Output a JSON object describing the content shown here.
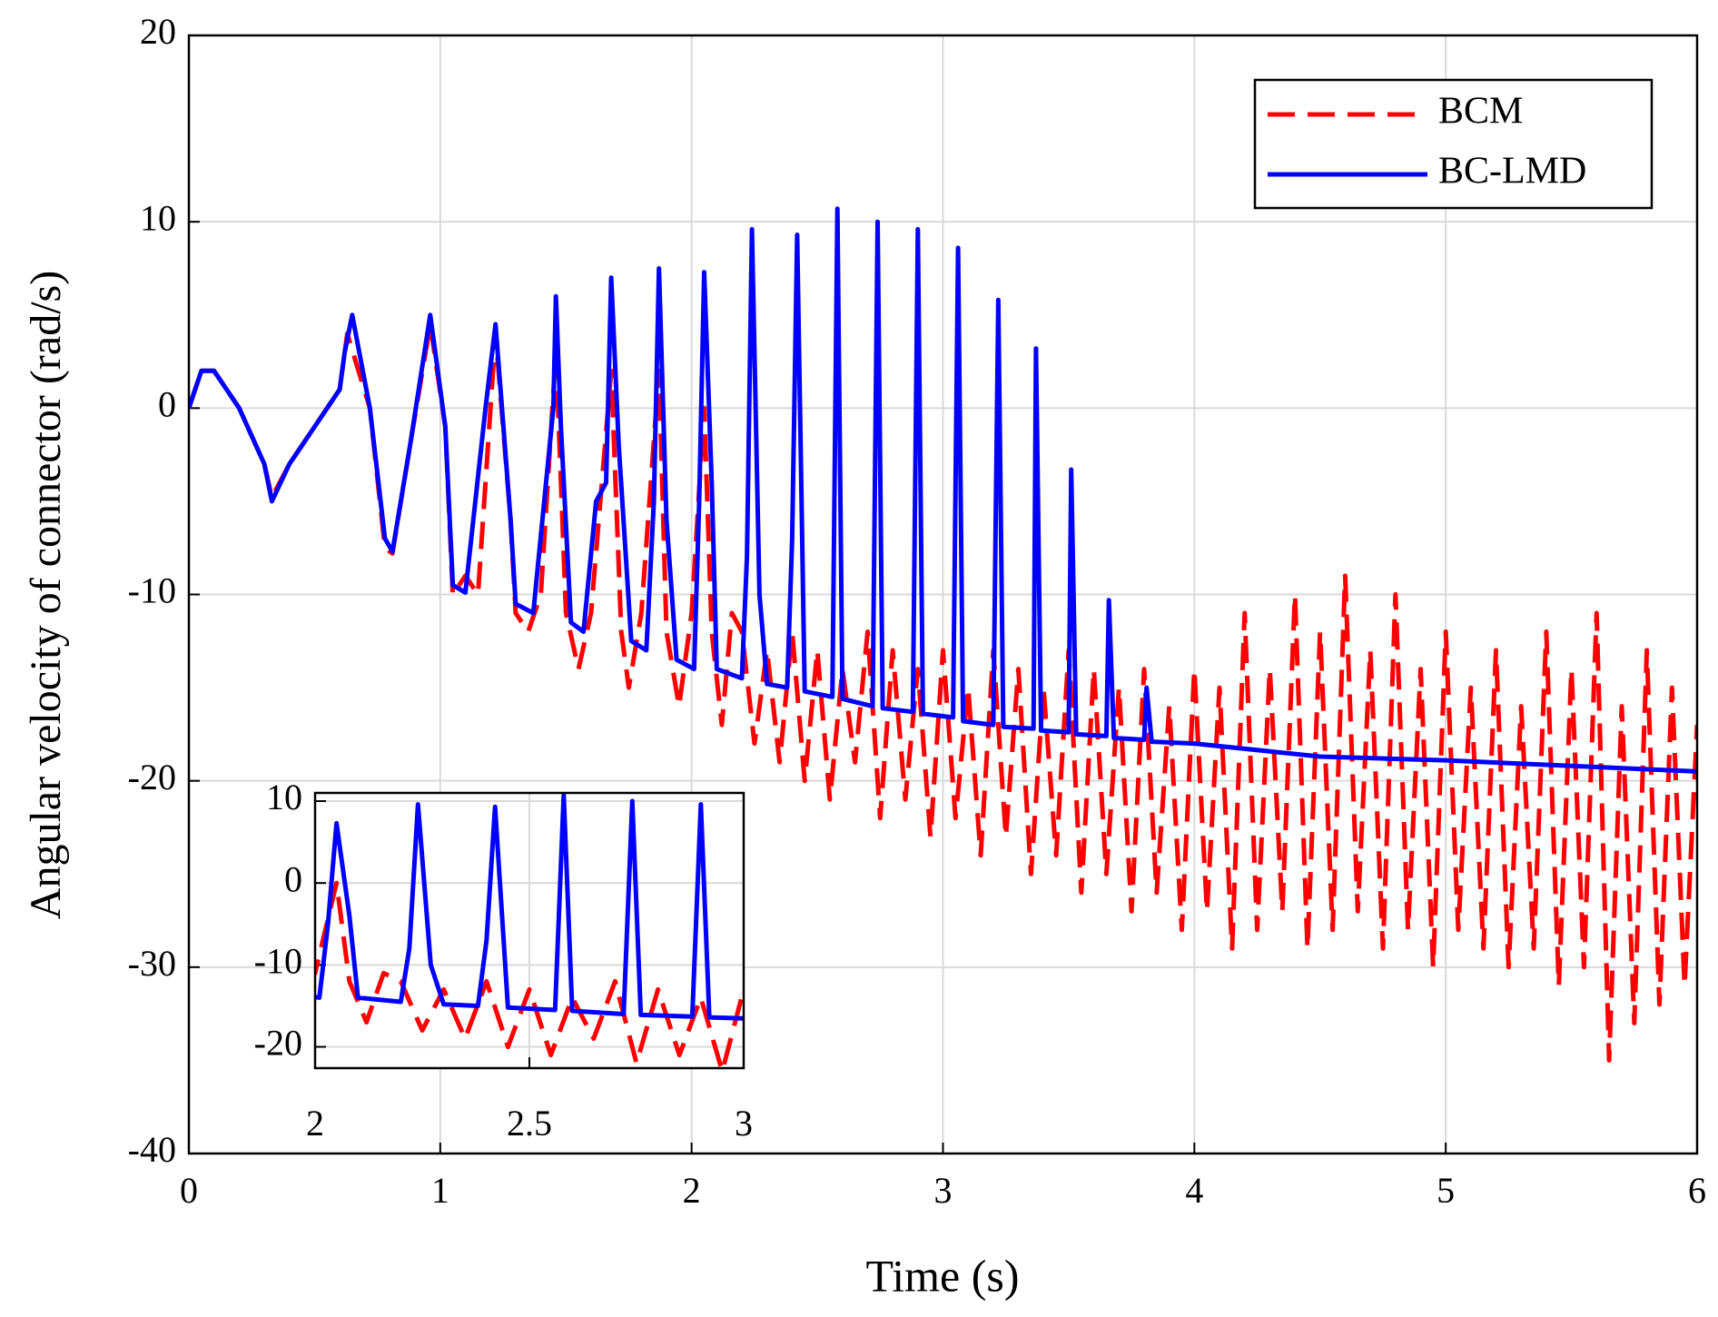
{
  "chart_data": [
    {
      "type": "line",
      "xlabel": "Time (s)",
      "ylabel": "Angular velocity of connector (rad/s)",
      "xlim": [
        0,
        6
      ],
      "xticks": [
        0,
        1,
        2,
        3,
        4,
        5,
        6
      ],
      "ylim": [
        -40,
        20
      ],
      "yticks": [
        -40,
        -30,
        -20,
        -10,
        0,
        10,
        20
      ],
      "grid": true,
      "legend": "upper right",
      "series": [
        {
          "name": "BCM",
          "color": "#ff0000",
          "style": "dashed",
          "x": [
            0,
            0.05,
            0.1,
            0.2,
            0.3,
            0.33,
            0.4,
            0.5,
            0.6,
            0.63,
            0.72,
            0.78,
            0.81,
            0.88,
            0.96,
            1.02,
            1.05,
            1.1,
            1.15,
            1.22,
            1.28,
            1.3,
            1.35,
            1.4,
            1.46,
            1.5,
            1.55,
            1.6,
            1.68,
            1.72,
            1.75,
            1.8,
            1.87,
            1.9,
            1.95,
            2.0,
            2.05,
            2.08,
            2.12,
            2.16,
            2.2,
            2.25,
            2.3,
            2.35,
            2.4,
            2.45,
            2.5,
            2.55,
            2.6,
            2.65,
            2.7,
            2.75,
            2.8,
            2.85,
            2.9,
            2.95,
            3.0,
            3.05,
            3.1,
            3.15,
            3.2,
            3.25,
            3.3,
            3.35,
            3.4,
            3.45,
            3.5,
            3.55,
            3.6,
            3.65,
            3.7,
            3.75,
            3.8,
            3.85,
            3.9,
            3.95,
            4.0,
            4.05,
            4.1,
            4.15,
            4.2,
            4.25,
            4.3,
            4.35,
            4.4,
            4.45,
            4.5,
            4.55,
            4.6,
            4.65,
            4.7,
            4.75,
            4.8,
            4.85,
            4.9,
            4.95,
            5.0,
            5.05,
            5.1,
            5.15,
            5.2,
            5.25,
            5.3,
            5.35,
            5.4,
            5.45,
            5.5,
            5.55,
            5.6,
            5.65,
            5.7,
            5.75,
            5.8,
            5.85,
            5.9,
            5.95,
            6.0
          ],
          "values": [
            0,
            2,
            2,
            0,
            -3,
            -4.8,
            -3,
            -1,
            1,
            4,
            0,
            -7.5,
            -7.8,
            -2,
            4.5,
            -1,
            -10,
            -9,
            -10,
            4,
            -6,
            -11,
            -12,
            -10,
            3,
            -11,
            -14,
            -11,
            2,
            -12,
            -15,
            -11,
            2,
            -12,
            -16,
            -11,
            0,
            -12,
            -17,
            -11,
            -12,
            -18,
            -13,
            -19,
            -12,
            -20,
            -13,
            -21,
            -14,
            -19,
            -12,
            -22,
            -13,
            -21,
            -14,
            -23,
            -13,
            -22,
            -15,
            -24,
            -13,
            -23,
            -14,
            -25,
            -15,
            -24,
            -13,
            -26,
            -14,
            -25,
            -15,
            -27,
            -14,
            -26,
            -16,
            -28,
            -14,
            -27,
            -15,
            -29,
            -11,
            -28,
            -14,
            -27,
            -10,
            -29,
            -12,
            -28,
            -9,
            -27,
            -13,
            -29,
            -10,
            -28,
            -14,
            -30,
            -12,
            -28,
            -15,
            -29,
            -13,
            -30,
            -16,
            -29,
            -12,
            -31,
            -14,
            -30,
            -11,
            -35,
            -16,
            -33,
            -13,
            -32,
            -15,
            -31,
            -17
          ]
        },
        {
          "name": "BC-LMD",
          "color": "#0000ff",
          "style": "solid",
          "x": [
            0,
            0.05,
            0.1,
            0.2,
            0.3,
            0.33,
            0.4,
            0.5,
            0.6,
            0.62,
            0.65,
            0.72,
            0.78,
            0.81,
            0.88,
            0.96,
            1.02,
            1.05,
            1.1,
            1.18,
            1.22,
            1.28,
            1.3,
            1.37,
            1.45,
            1.46,
            1.48,
            1.52,
            1.57,
            1.62,
            1.66,
            1.68,
            1.71,
            1.76,
            1.82,
            1.85,
            1.87,
            1.9,
            1.94,
            2.01,
            2.03,
            2.05,
            2.08,
            2.1,
            2.2,
            2.22,
            2.24,
            2.27,
            2.3,
            2.38,
            2.4,
            2.42,
            2.45,
            2.56,
            2.58,
            2.6,
            2.72,
            2.74,
            2.76,
            2.88,
            2.9,
            2.92,
            3.04,
            3.06,
            3.08,
            3.2,
            3.22,
            3.24,
            3.36,
            3.37,
            3.39,
            3.5,
            3.51,
            3.53,
            3.65,
            3.66,
            3.68,
            3.8,
            3.81,
            3.83,
            4,
            4.5,
            5,
            5.5,
            6
          ],
          "values": [
            0,
            2,
            2,
            0,
            -3,
            -5,
            -3,
            -1,
            1,
            3,
            5,
            0,
            -7,
            -7.7,
            -2,
            5,
            -1,
            -9.5,
            -9.9,
            0,
            4.5,
            -6,
            -10.5,
            -11,
            0,
            6,
            -1,
            -11.5,
            -12,
            -5,
            -4,
            7,
            -2,
            -12.5,
            -13,
            -5,
            7.5,
            -6,
            -13.5,
            -14,
            -5,
            7.3,
            -4,
            -14,
            -14.5,
            -8,
            9.6,
            -10,
            -14.8,
            -15,
            -7,
            9.3,
            -15.2,
            -15.5,
            10.7,
            -15.6,
            -16,
            10,
            -16.1,
            -16.3,
            9.6,
            -16.4,
            -16.6,
            8.6,
            -16.8,
            -17,
            5.8,
            -17.1,
            -17.2,
            3.2,
            -17.3,
            -17.4,
            -3.3,
            -17.5,
            -17.6,
            -10.3,
            -17.7,
            -17.8,
            -15,
            -17.9,
            -18,
            -18.7,
            -18.9,
            -19.2,
            -19.5
          ]
        }
      ]
    },
    {
      "type": "inset",
      "xlim": [
        2,
        3
      ],
      "xticks": [
        2,
        2.5,
        3
      ],
      "ylim": [
        -22.6,
        11
      ],
      "yticks": [
        -20,
        -10,
        0,
        10
      ],
      "grid": true
    }
  ]
}
